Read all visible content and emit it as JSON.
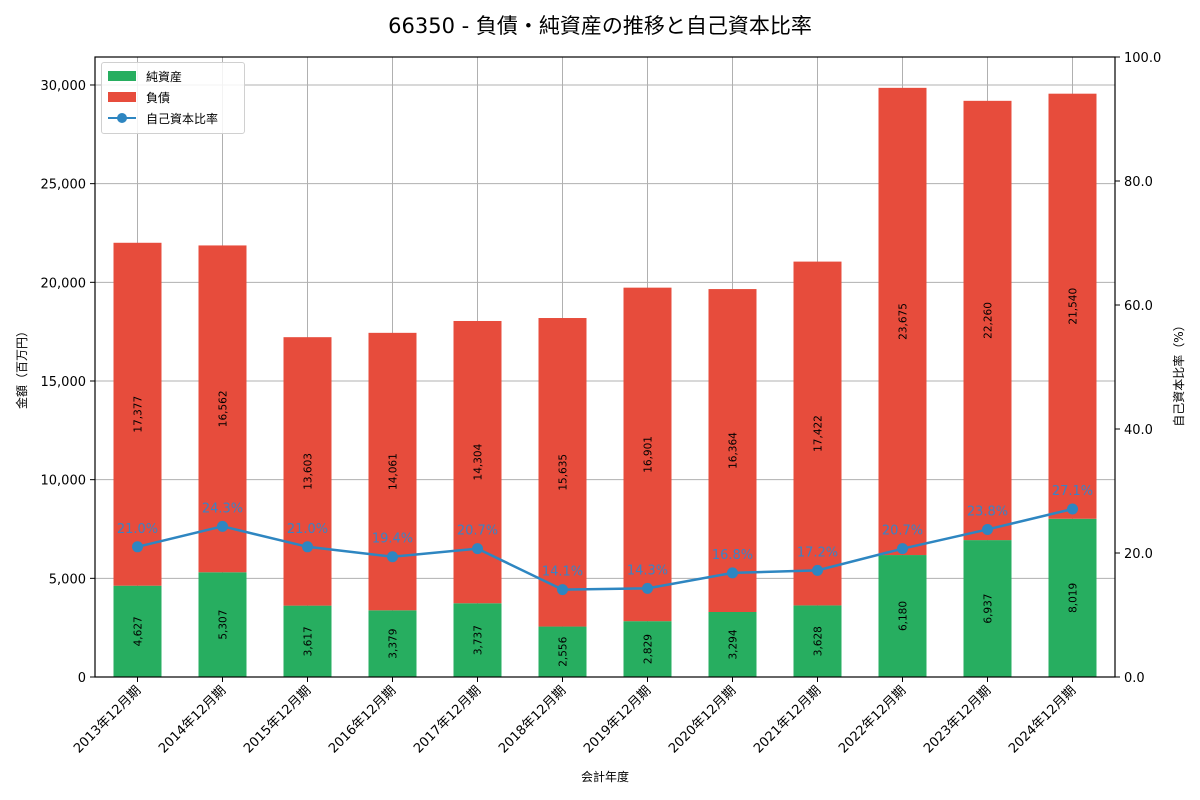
{
  "title": "66350 - 負債・純資産の推移と自己資本比率",
  "colors": {
    "net_assets": "#27ae60",
    "liabilities": "#e74c3c",
    "ratio": "#2e86c1",
    "ratio_label": "#3b82c4",
    "grid": "#b0b0b0"
  },
  "legend": {
    "net_assets": "純資産",
    "liabilities": "負債",
    "ratio": "自己資本比率"
  },
  "axes": {
    "xlabel": "会計年度",
    "ylabel_left": "金額（百万円）",
    "ylabel_right": "自己資本比率（%）",
    "left_ticks": [
      "0",
      "5,000",
      "10,000",
      "15,000",
      "20,000",
      "25,000",
      "30,000"
    ],
    "right_ticks": [
      "0.0",
      "20.0",
      "40.0",
      "60.0",
      "80.0",
      "100.0"
    ]
  },
  "chart_data": {
    "type": "bar",
    "stacked": true,
    "title": "66350 - 負債・純資産の推移と自己資本比率",
    "xlabel": "会計年度",
    "ylabel": "金額（百万円）",
    "ylabel_secondary": "自己資本比率（%）",
    "ylim": [
      0,
      31500
    ],
    "ylim_secondary": [
      0,
      100
    ],
    "grid": true,
    "legend_position": "upper left",
    "categories": [
      "2013年12月期",
      "2014年12月期",
      "2015年12月期",
      "2016年12月期",
      "2017年12月期",
      "2018年12月期",
      "2019年12月期",
      "2020年12月期",
      "2021年12月期",
      "2022年12月期",
      "2023年12月期",
      "2024年12月期"
    ],
    "series": [
      {
        "name": "純資産",
        "type": "bar",
        "axis": "left",
        "values": [
          4627,
          5307,
          3617,
          3379,
          3737,
          2556,
          2829,
          3294,
          3628,
          6180,
          6937,
          8019
        ]
      },
      {
        "name": "負債",
        "type": "bar",
        "axis": "left",
        "values": [
          17377,
          16562,
          13603,
          14061,
          14304,
          15635,
          16901,
          16364,
          17422,
          23675,
          22260,
          21540
        ]
      },
      {
        "name": "自己資本比率",
        "type": "line",
        "axis": "right",
        "values": [
          21.0,
          24.3,
          21.0,
          19.4,
          20.7,
          14.1,
          14.3,
          16.8,
          17.2,
          20.7,
          23.8,
          27.1
        ]
      }
    ],
    "labels": {
      "net_assets": [
        "4,627",
        "5,307",
        "3,617",
        "3,379",
        "3,737",
        "2,556",
        "2,829",
        "3,294",
        "3,628",
        "6,180",
        "6,937",
        "8,019"
      ],
      "liabilities": [
        "17,377",
        "16,562",
        "13,603",
        "14,061",
        "14,304",
        "15,635",
        "16,901",
        "16,364",
        "17,422",
        "23,675",
        "22,260",
        "21,540"
      ],
      "ratio": [
        "21.0%",
        "24.3%",
        "21.0%",
        "19.4%",
        "20.7%",
        "14.1%",
        "14.3%",
        "16.8%",
        "17.2%",
        "20.7%",
        "23.8%",
        "27.1%"
      ]
    }
  }
}
